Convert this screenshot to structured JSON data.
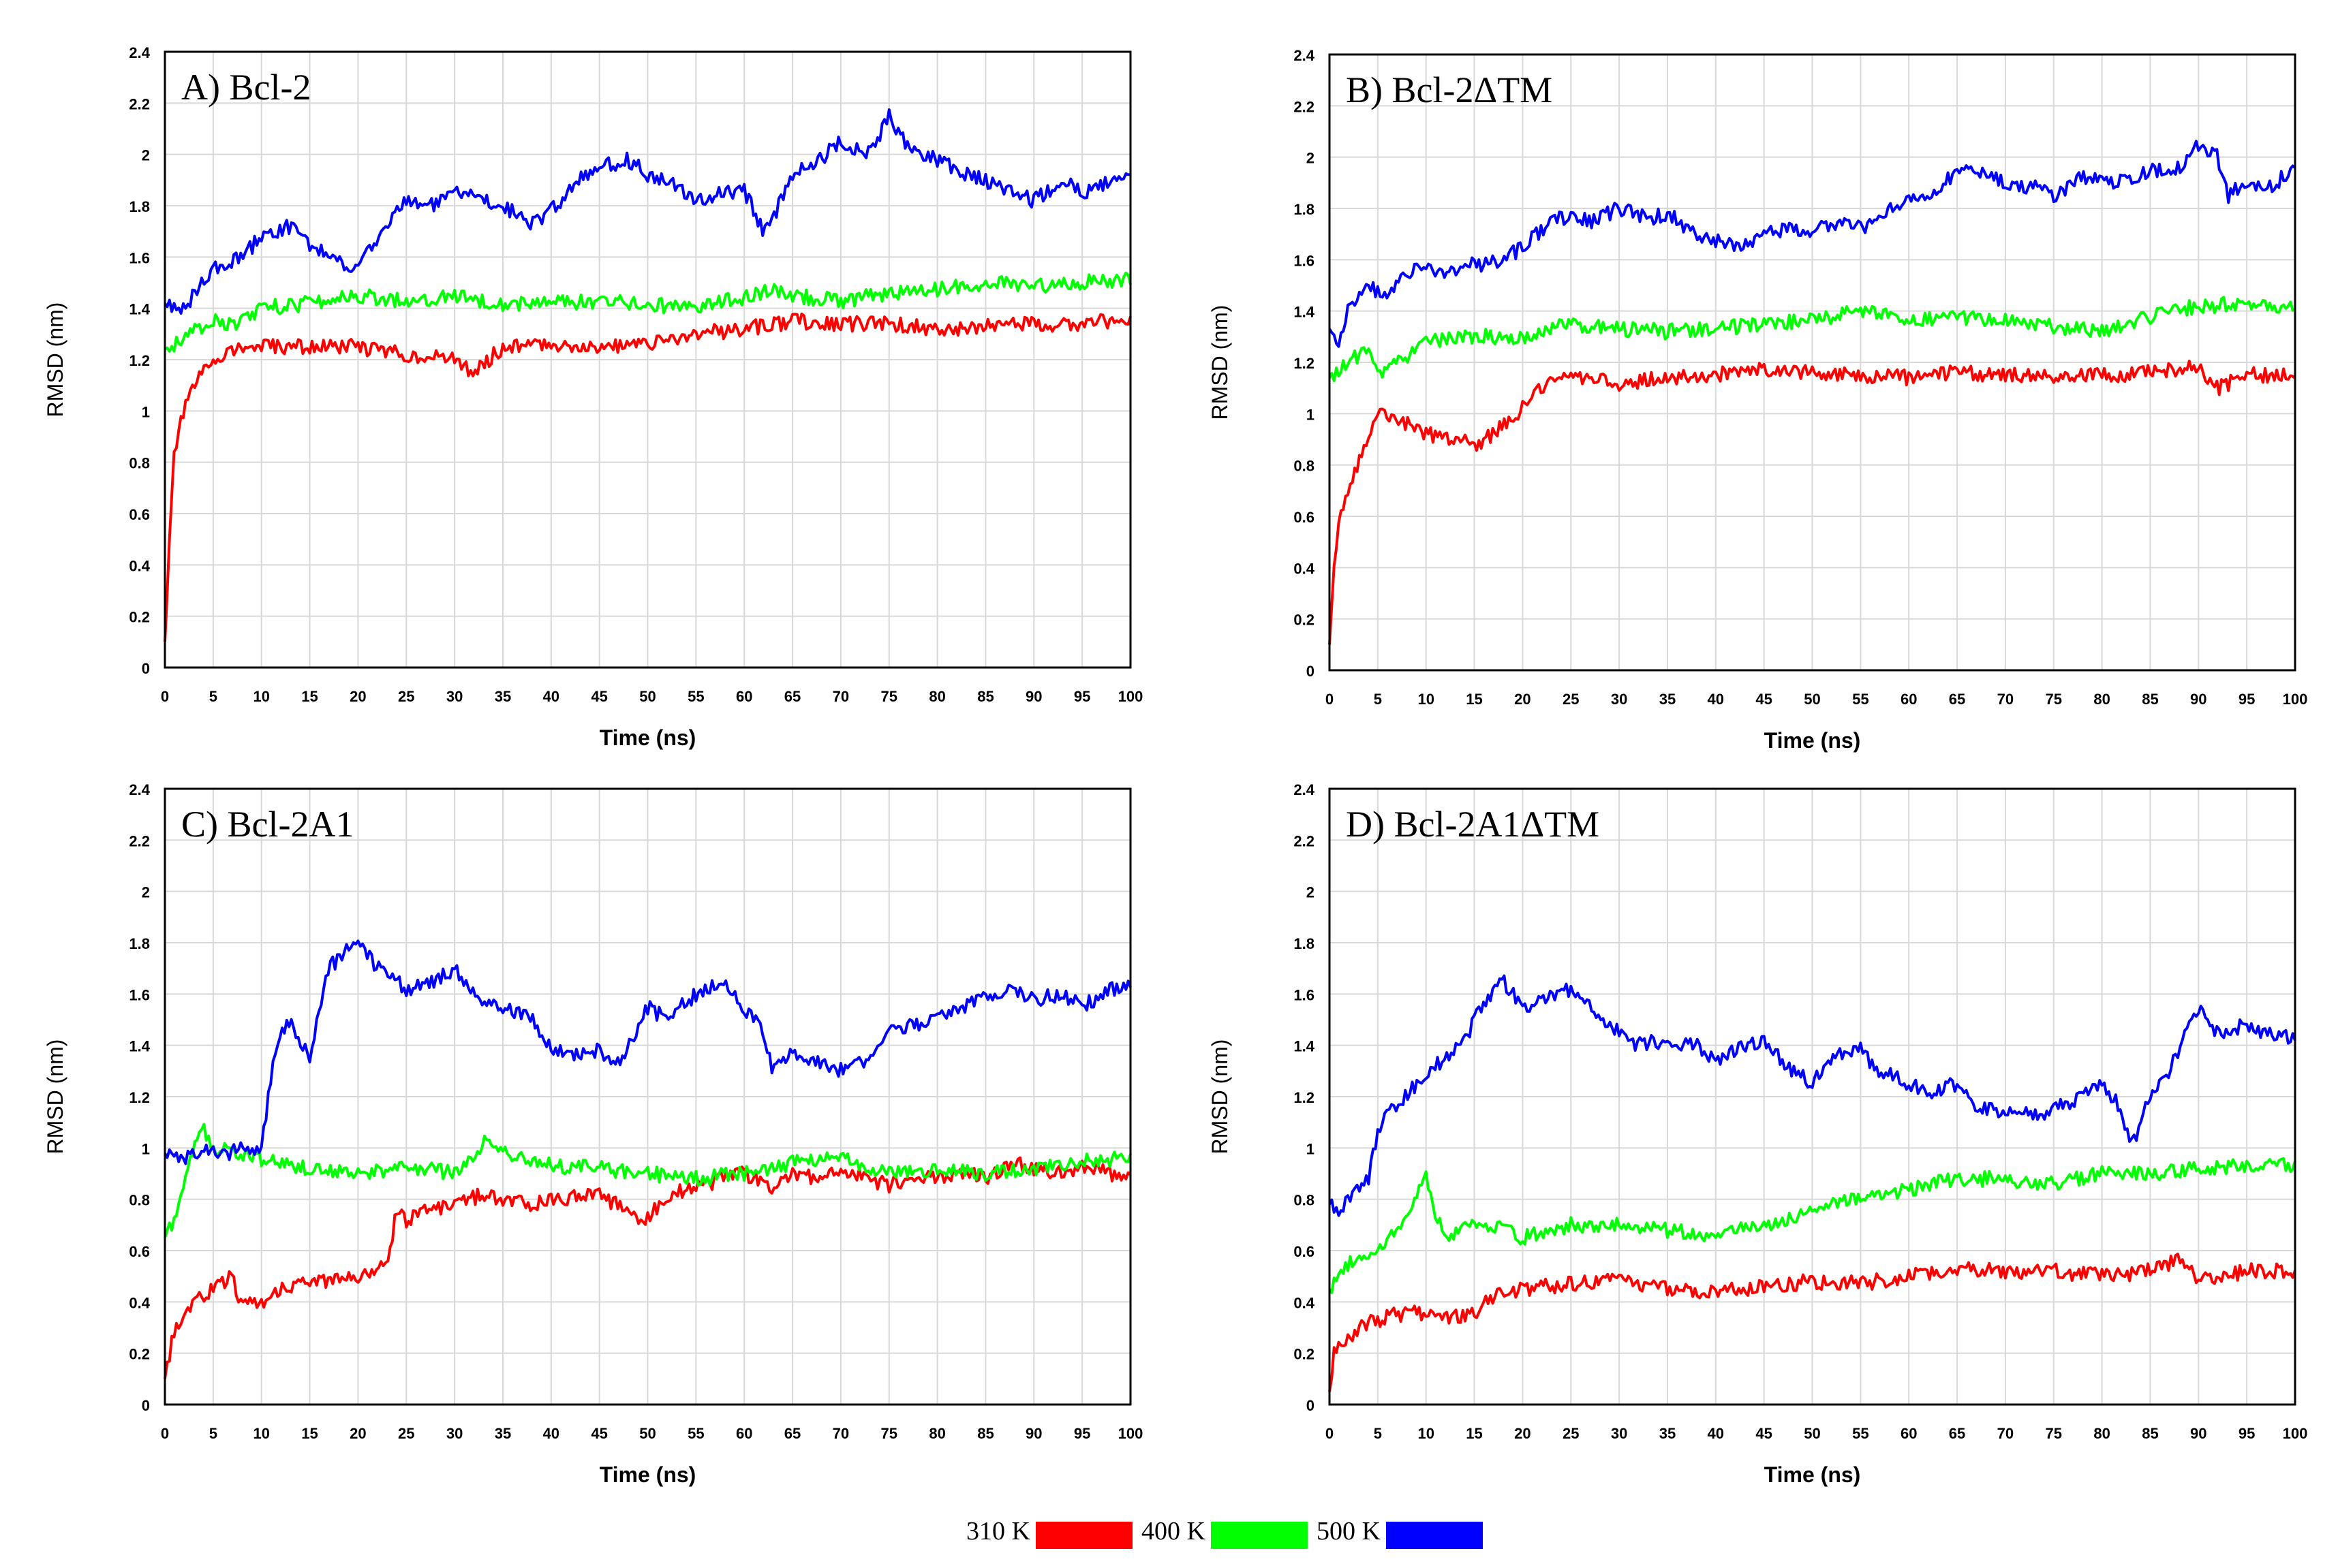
{
  "colors": {
    "t310": "#ff0000",
    "t400": "#00ff00",
    "t500": "#0000ff",
    "axis": "#000000",
    "grid": "#d8d8d8"
  },
  "legend": [
    {
      "label": "310 K",
      "color": "#ff0000"
    },
    {
      "label": "400 K",
      "color": "#00ff00"
    },
    {
      "label": "500 K",
      "color": "#0000ff"
    }
  ],
  "chart_data": [
    {
      "type": "line",
      "title": "A) Bcl-2",
      "xlabel": "Time (ns)",
      "ylabel": "RMSD (nm)",
      "xlim": [
        0,
        100
      ],
      "ylim": [
        0,
        2.4
      ],
      "xticks": [
        "0",
        "5",
        "10",
        "15",
        "20",
        "25",
        "30",
        "35",
        "40",
        "45",
        "50",
        "55",
        "60",
        "65",
        "70",
        "75",
        "80",
        "85",
        "90",
        "95",
        "100"
      ],
      "yticks": [
        "0",
        "0.2",
        "0.4",
        "0.6",
        "0.8",
        "1",
        "1.2",
        "1.4",
        "1.6",
        "1.8",
        "2",
        "2.2",
        "2.4"
      ],
      "grid": true,
      "series": [
        {
          "name": "310 K",
          "color": "#ff0000",
          "x": [
            0,
            0.5,
            1,
            2,
            3,
            5,
            7,
            10,
            15,
            20,
            25,
            30,
            32,
            35,
            40,
            45,
            50,
            55,
            60,
            65,
            70,
            75,
            80,
            85,
            90,
            95,
            100
          ],
          "y": [
            0.1,
            0.5,
            0.85,
            1.0,
            1.1,
            1.2,
            1.24,
            1.25,
            1.25,
            1.25,
            1.22,
            1.2,
            1.15,
            1.25,
            1.26,
            1.25,
            1.26,
            1.3,
            1.32,
            1.35,
            1.34,
            1.34,
            1.32,
            1.33,
            1.34,
            1.34,
            1.36
          ]
        },
        {
          "name": "400 K",
          "color": "#00ff00",
          "x": [
            0,
            2,
            5,
            7,
            10,
            15,
            20,
            25,
            30,
            35,
            40,
            45,
            50,
            55,
            60,
            63,
            65,
            70,
            75,
            80,
            85,
            90,
            95,
            100
          ],
          "y": [
            1.24,
            1.28,
            1.36,
            1.33,
            1.4,
            1.42,
            1.45,
            1.43,
            1.45,
            1.42,
            1.42,
            1.43,
            1.41,
            1.41,
            1.44,
            1.48,
            1.45,
            1.43,
            1.46,
            1.47,
            1.5,
            1.49,
            1.5,
            1.51
          ]
        },
        {
          "name": "500 K",
          "color": "#0000ff",
          "x": [
            0,
            2,
            5,
            8,
            10,
            13,
            15,
            17,
            20,
            22,
            25,
            28,
            30,
            33,
            35,
            38,
            40,
            43,
            45,
            48,
            50,
            53,
            55,
            58,
            60,
            62,
            63,
            65,
            67,
            70,
            73,
            75,
            77,
            80,
            83,
            85,
            88,
            90,
            93,
            95,
            97,
            100
          ],
          "y": [
            1.42,
            1.4,
            1.55,
            1.6,
            1.68,
            1.72,
            1.65,
            1.6,
            1.55,
            1.68,
            1.82,
            1.8,
            1.85,
            1.83,
            1.8,
            1.73,
            1.78,
            1.9,
            1.95,
            1.98,
            1.92,
            1.88,
            1.82,
            1.85,
            1.86,
            1.7,
            1.75,
            1.93,
            1.95,
            2.05,
            2.0,
            2.15,
            2.02,
            1.98,
            1.92,
            1.9,
            1.85,
            1.82,
            1.9,
            1.85,
            1.88,
            1.93
          ]
        }
      ]
    },
    {
      "type": "line",
      "title": "B) Bcl-2ΔTM",
      "xlabel": "Time (ns)",
      "ylabel": "RMSD (nm)",
      "xlim": [
        0,
        100
      ],
      "ylim": [
        0,
        2.4
      ],
      "xticks": [
        "0",
        "5",
        "10",
        "15",
        "20",
        "25",
        "30",
        "35",
        "40",
        "45",
        "50",
        "55",
        "60",
        "65",
        "70",
        "75",
        "80",
        "85",
        "90",
        "95",
        "100"
      ],
      "yticks": [
        "0",
        "0.2",
        "0.4",
        "0.6",
        "0.8",
        "1",
        "1.2",
        "1.4",
        "1.6",
        "1.8",
        "2",
        "2.2",
        "2.4"
      ],
      "grid": true,
      "series": [
        {
          "name": "310 K",
          "color": "#ff0000",
          "x": [
            0,
            0.5,
            1,
            2,
            3,
            4,
            5,
            7,
            10,
            13,
            15,
            17,
            20,
            22,
            25,
            30,
            35,
            40,
            45,
            50,
            55,
            60,
            65,
            70,
            75,
            80,
            85,
            90,
            92,
            95,
            100
          ],
          "y": [
            0.1,
            0.4,
            0.6,
            0.7,
            0.8,
            0.9,
            1.02,
            0.98,
            0.92,
            0.9,
            0.88,
            0.92,
            1.02,
            1.1,
            1.15,
            1.12,
            1.14,
            1.15,
            1.17,
            1.16,
            1.15,
            1.14,
            1.16,
            1.15,
            1.15,
            1.15,
            1.16,
            1.18,
            1.1,
            1.15,
            1.15
          ]
        },
        {
          "name": "400 K",
          "color": "#00ff00",
          "x": [
            0,
            2,
            4,
            5,
            7,
            10,
            15,
            20,
            25,
            30,
            35,
            40,
            45,
            50,
            55,
            60,
            65,
            70,
            75,
            80,
            85,
            90,
            95,
            100
          ],
          "y": [
            1.14,
            1.2,
            1.25,
            1.15,
            1.2,
            1.28,
            1.3,
            1.3,
            1.35,
            1.33,
            1.32,
            1.33,
            1.35,
            1.36,
            1.4,
            1.36,
            1.38,
            1.36,
            1.34,
            1.32,
            1.38,
            1.42,
            1.43,
            1.42
          ]
        },
        {
          "name": "500 K",
          "color": "#0000ff",
          "x": [
            0,
            1,
            2,
            4,
            6,
            8,
            10,
            12,
            15,
            18,
            20,
            22,
            25,
            27,
            30,
            33,
            35,
            38,
            40,
            43,
            45,
            48,
            50,
            53,
            55,
            58,
            60,
            63,
            65,
            68,
            70,
            73,
            75,
            78,
            80,
            83,
            85,
            88,
            90,
            92,
            93,
            95,
            97,
            100
          ],
          "y": [
            1.33,
            1.28,
            1.42,
            1.5,
            1.45,
            1.55,
            1.57,
            1.55,
            1.58,
            1.6,
            1.65,
            1.72,
            1.78,
            1.75,
            1.8,
            1.76,
            1.78,
            1.7,
            1.68,
            1.65,
            1.7,
            1.72,
            1.72,
            1.75,
            1.72,
            1.8,
            1.82,
            1.88,
            1.95,
            1.95,
            1.9,
            1.88,
            1.85,
            1.92,
            1.9,
            1.92,
            1.95,
            1.96,
            2.05,
            2.0,
            1.85,
            1.9,
            1.88,
            1.95
          ]
        }
      ]
    },
    {
      "type": "line",
      "title": "C) Bcl-2A1",
      "xlabel": "Time (ns)",
      "ylabel": "RMSD (nm)",
      "xlim": [
        0,
        100
      ],
      "ylim": [
        0,
        2.4
      ],
      "xticks": [
        "0",
        "5",
        "10",
        "15",
        "20",
        "25",
        "30",
        "35",
        "40",
        "45",
        "50",
        "55",
        "60",
        "65",
        "70",
        "75",
        "80",
        "85",
        "90",
        "95",
        "100"
      ],
      "yticks": [
        "0",
        "0.2",
        "0.4",
        "0.6",
        "0.8",
        "1",
        "1.2",
        "1.4",
        "1.6",
        "1.8",
        "2",
        "2.2",
        "2.4"
      ],
      "grid": true,
      "series": [
        {
          "name": "310 K",
          "color": "#ff0000",
          "x": [
            0,
            1,
            2,
            3,
            5,
            7,
            8,
            10,
            12,
            15,
            18,
            20,
            23,
            24,
            25,
            27,
            30,
            33,
            35,
            38,
            40,
            45,
            48,
            50,
            52,
            55,
            58,
            60,
            63,
            65,
            68,
            70,
            73,
            75,
            78,
            80,
            83,
            85,
            88,
            90,
            93,
            95,
            98,
            100
          ],
          "y": [
            0.1,
            0.3,
            0.35,
            0.4,
            0.45,
            0.5,
            0.38,
            0.4,
            0.45,
            0.48,
            0.48,
            0.5,
            0.55,
            0.75,
            0.72,
            0.76,
            0.78,
            0.82,
            0.8,
            0.78,
            0.8,
            0.82,
            0.75,
            0.72,
            0.82,
            0.85,
            0.88,
            0.9,
            0.85,
            0.9,
            0.88,
            0.92,
            0.88,
            0.85,
            0.9,
            0.88,
            0.9,
            0.88,
            0.95,
            0.92,
            0.9,
            0.92,
            0.9,
            0.9
          ]
        },
        {
          "name": "400 K",
          "color": "#00ff00",
          "x": [
            0,
            1,
            2,
            3,
            4,
            5,
            7,
            10,
            15,
            20,
            25,
            30,
            33,
            35,
            38,
            40,
            45,
            50,
            55,
            60,
            65,
            70,
            73,
            75,
            80,
            85,
            90,
            95,
            100
          ],
          "y": [
            0.65,
            0.72,
            0.85,
            1.0,
            1.08,
            1.0,
            0.98,
            0.96,
            0.92,
            0.9,
            0.93,
            0.9,
            1.02,
            0.98,
            0.95,
            0.93,
            0.92,
            0.9,
            0.88,
            0.9,
            0.94,
            0.98,
            0.92,
            0.9,
            0.92,
            0.9,
            0.92,
            0.95,
            0.96
          ]
        },
        {
          "name": "500 K",
          "color": "#0000ff",
          "x": [
            0,
            2,
            4,
            6,
            8,
            10,
            11,
            12,
            13,
            15,
            17,
            19,
            20,
            22,
            25,
            28,
            30,
            32,
            35,
            38,
            40,
            42,
            45,
            47,
            50,
            52,
            55,
            58,
            60,
            62,
            63,
            65,
            67,
            70,
            73,
            75,
            78,
            80,
            83,
            85,
            88,
            90,
            93,
            95,
            98,
            100
          ],
          "y": [
            0.98,
            0.95,
            1.0,
            0.97,
            1.0,
            1.0,
            1.28,
            1.45,
            1.5,
            1.35,
            1.7,
            1.78,
            1.8,
            1.7,
            1.62,
            1.65,
            1.7,
            1.6,
            1.55,
            1.5,
            1.4,
            1.35,
            1.38,
            1.32,
            1.55,
            1.5,
            1.6,
            1.65,
            1.55,
            1.45,
            1.3,
            1.38,
            1.35,
            1.3,
            1.35,
            1.45,
            1.48,
            1.52,
            1.55,
            1.6,
            1.62,
            1.58,
            1.6,
            1.55,
            1.62,
            1.63
          ]
        }
      ]
    },
    {
      "type": "line",
      "title": "D) Bcl-2A1ΔTM",
      "xlabel": "Time (ns)",
      "ylabel": "RMSD (nm)",
      "xlim": [
        0,
        100
      ],
      "ylim": [
        0,
        2.4
      ],
      "xticks": [
        "0",
        "5",
        "10",
        "15",
        "20",
        "25",
        "30",
        "35",
        "40",
        "45",
        "50",
        "55",
        "60",
        "65",
        "70",
        "75",
        "80",
        "85",
        "90",
        "95",
        "100"
      ],
      "yticks": [
        "0",
        "0.2",
        "0.4",
        "0.6",
        "0.8",
        "1",
        "1.2",
        "1.4",
        "1.6",
        "1.8",
        "2",
        "2.2",
        "2.4"
      ],
      "grid": true,
      "series": [
        {
          "name": "310 K",
          "color": "#ff0000",
          "x": [
            0,
            0.5,
            1,
            2,
            3,
            5,
            7,
            10,
            13,
            15,
            17,
            20,
            25,
            30,
            35,
            40,
            45,
            50,
            55,
            60,
            65,
            70,
            75,
            80,
            85,
            88,
            90,
            95,
            100
          ],
          "y": [
            0.05,
            0.2,
            0.22,
            0.25,
            0.3,
            0.33,
            0.35,
            0.36,
            0.34,
            0.36,
            0.42,
            0.45,
            0.47,
            0.48,
            0.45,
            0.44,
            0.46,
            0.48,
            0.47,
            0.5,
            0.53,
            0.52,
            0.52,
            0.5,
            0.52,
            0.57,
            0.48,
            0.52,
            0.52
          ]
        },
        {
          "name": "400 K",
          "color": "#00ff00",
          "x": [
            0,
            1,
            2,
            5,
            7,
            9,
            10,
            11,
            12,
            15,
            20,
            25,
            30,
            35,
            40,
            45,
            50,
            55,
            60,
            65,
            70,
            75,
            80,
            85,
            90,
            95,
            100
          ],
          "y": [
            0.45,
            0.5,
            0.55,
            0.6,
            0.68,
            0.82,
            0.88,
            0.75,
            0.65,
            0.72,
            0.65,
            0.7,
            0.7,
            0.68,
            0.66,
            0.7,
            0.76,
            0.8,
            0.84,
            0.88,
            0.88,
            0.86,
            0.9,
            0.9,
            0.92,
            0.93,
            0.93
          ]
        },
        {
          "name": "500 K",
          "color": "#0000ff",
          "x": [
            0,
            1,
            2,
            4,
            5,
            6,
            8,
            10,
            12,
            14,
            15,
            17,
            18,
            20,
            22,
            25,
            27,
            30,
            32,
            35,
            38,
            40,
            43,
            45,
            48,
            50,
            52,
            55,
            57,
            60,
            62,
            65,
            67,
            70,
            73,
            75,
            78,
            80,
            82,
            83,
            85,
            87,
            90,
            92,
            95,
            97,
            100
          ],
          "y": [
            0.78,
            0.75,
            0.8,
            0.88,
            1.05,
            1.15,
            1.2,
            1.3,
            1.35,
            1.42,
            1.5,
            1.6,
            1.65,
            1.55,
            1.58,
            1.62,
            1.55,
            1.45,
            1.4,
            1.42,
            1.4,
            1.33,
            1.4,
            1.42,
            1.3,
            1.25,
            1.35,
            1.38,
            1.3,
            1.25,
            1.22,
            1.25,
            1.15,
            1.15,
            1.12,
            1.15,
            1.2,
            1.25,
            1.15,
            1.0,
            1.2,
            1.3,
            1.55,
            1.45,
            1.48,
            1.45,
            1.43
          ]
        }
      ]
    }
  ]
}
